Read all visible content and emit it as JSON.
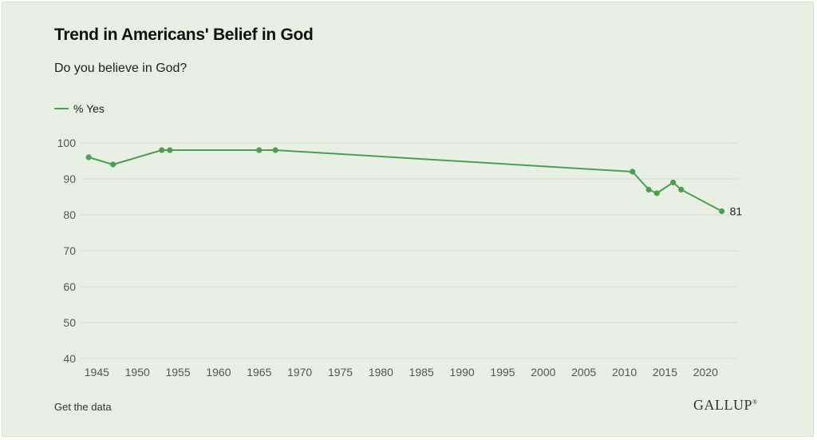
{
  "chart_data": {
    "type": "line",
    "title": "Trend in Americans' Belief in God",
    "subtitle": "Do you believe in God?",
    "xlabel": "",
    "ylabel": "",
    "xlim": [
      1943,
      2024
    ],
    "ylim": [
      40,
      100
    ],
    "x_ticks": [
      1945,
      1950,
      1955,
      1960,
      1965,
      1970,
      1975,
      1980,
      1985,
      1990,
      1995,
      2000,
      2005,
      2010,
      2015,
      2020
    ],
    "y_ticks": [
      40,
      50,
      60,
      70,
      80,
      90,
      100
    ],
    "grid": "horizontal",
    "legend_position": "top-left",
    "series": [
      {
        "name": "% Yes",
        "color": "#4f9d55",
        "points": [
          {
            "x": 1944,
            "y": 96
          },
          {
            "x": 1947,
            "y": 94
          },
          {
            "x": 1953,
            "y": 98
          },
          {
            "x": 1954,
            "y": 98
          },
          {
            "x": 1965,
            "y": 98
          },
          {
            "x": 1967,
            "y": 98
          },
          {
            "x": 2011,
            "y": 92
          },
          {
            "x": 2013,
            "y": 87
          },
          {
            "x": 2014,
            "y": 86
          },
          {
            "x": 2016,
            "y": 89
          },
          {
            "x": 2017,
            "y": 87
          },
          {
            "x": 2022,
            "y": 81
          }
        ]
      }
    ],
    "end_label": "81"
  },
  "footer": {
    "get_data_label": "Get the data",
    "logo_text": "GALLUP",
    "logo_mark": "®"
  },
  "colors": {
    "background": "#e8f0e3",
    "gridline": "#d3dccd",
    "line": "#4f9d55"
  }
}
